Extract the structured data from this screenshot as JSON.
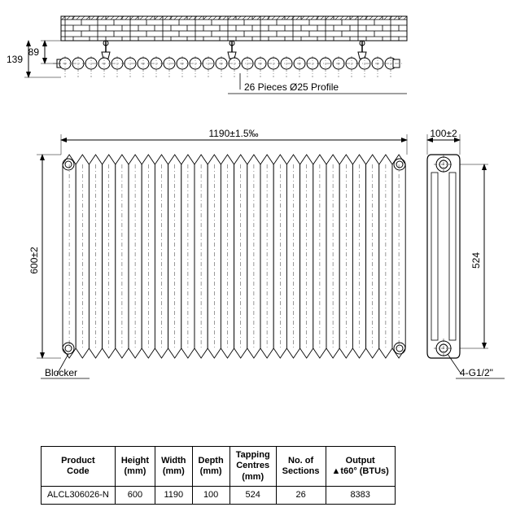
{
  "top_view": {
    "dim_89": "89",
    "dim_139": "139",
    "profile_label": "26 Pieces Ø25 Profile",
    "pieces": 26,
    "bracket_count": 3
  },
  "front_view": {
    "width_label": "1190±1.5‰",
    "height_label": "600±2",
    "blocker_label": "Blocker",
    "sections": 26
  },
  "side_view": {
    "width_label": "100±2",
    "height_label": "524",
    "thread_label": "4-G1/2\""
  },
  "table": {
    "headers": [
      "Product\nCode",
      "Height\n(mm)",
      "Width\n(mm)",
      "Depth\n(mm)",
      "Tapping\nCentres\n(mm)",
      "No. of\nSections",
      "Output\n▲t60° (BTUs)"
    ],
    "rows": [
      [
        "ALCL306026-N",
        "600",
        "1190",
        "100",
        "524",
        "26",
        "8383"
      ]
    ]
  },
  "colors": {
    "line": "#000000",
    "bg": "#ffffff",
    "hatch": "#000000"
  }
}
